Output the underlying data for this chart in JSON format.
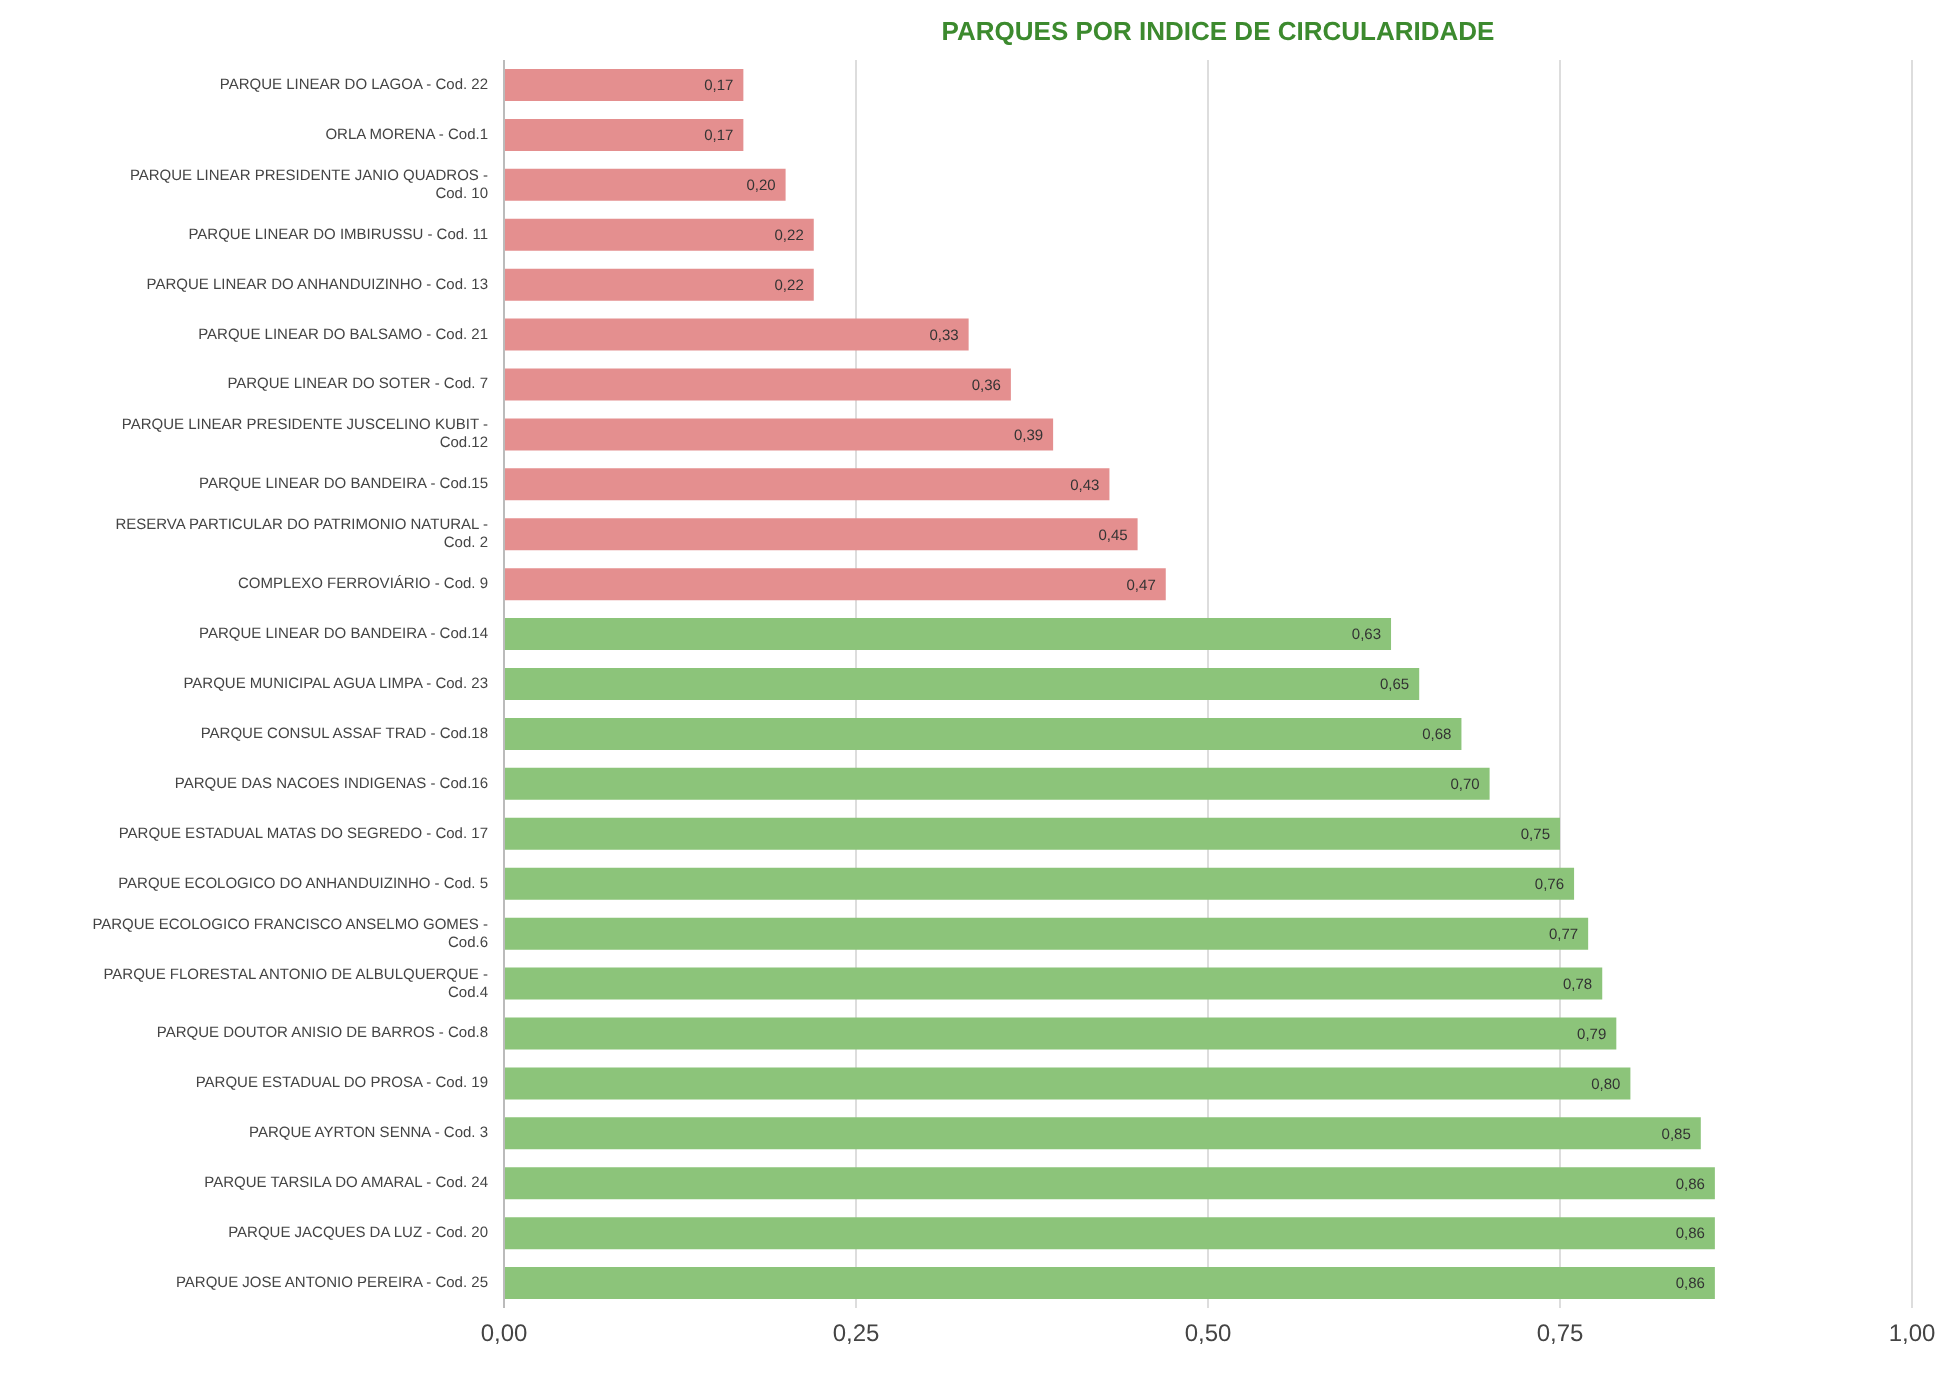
{
  "chart_data": {
    "type": "bar",
    "orientation": "horizontal",
    "title": "PARQUES POR INDICE DE CIRCULARIDADE",
    "categories": [
      "PARQUE LINEAR DO LAGOA - Cod. 22",
      "ORLA MORENA - Cod.1",
      "PARQUE LINEAR PRESIDENTE JANIO QUADROS - Cod. 10",
      "PARQUE LINEAR DO IMBIRUSSU - Cod. 11",
      "PARQUE LINEAR DO ANHANDUIZINHO - Cod. 13",
      "PARQUE LINEAR DO BALSAMO - Cod. 21",
      "PARQUE LINEAR DO SOTER - Cod. 7",
      "PARQUE LINEAR PRESIDENTE JUSCELINO KUBIT - Cod.12",
      "PARQUE LINEAR DO BANDEIRA - Cod.15",
      "RESERVA PARTICULAR DO PATRIMONIO NATURAL - Cod. 2",
      "COMPLEXO FERROVIÁRIO - Cod. 9",
      "PARQUE LINEAR DO BANDEIRA - Cod.14",
      "PARQUE MUNICIPAL AGUA LIMPA - Cod. 23",
      "PARQUE CONSUL ASSAF TRAD - Cod.18",
      "PARQUE DAS NACOES INDIGENAS - Cod.16",
      "PARQUE ESTADUAL MATAS DO SEGREDO - Cod. 17",
      "PARQUE ECOLOGICO DO ANHANDUIZINHO - Cod. 5",
      "PARQUE ECOLOGICO FRANCISCO ANSELMO GOMES - Cod.6",
      "PARQUE FLORESTAL ANTONIO DE ALBULQUERQUE - Cod.4",
      "PARQUE DOUTOR ANISIO DE BARROS - Cod.8",
      "PARQUE ESTADUAL DO PROSA - Cod. 19",
      "PARQUE AYRTON SENNA - Cod. 3",
      "PARQUE TARSILA DO AMARAL - Cod. 24",
      "PARQUE JACQUES DA LUZ - Cod. 20",
      "PARQUE JOSE ANTONIO PEREIRA - Cod. 25"
    ],
    "values": [
      0.17,
      0.17,
      0.2,
      0.22,
      0.22,
      0.33,
      0.36,
      0.39,
      0.43,
      0.45,
      0.47,
      0.63,
      0.65,
      0.68,
      0.7,
      0.75,
      0.76,
      0.77,
      0.78,
      0.79,
      0.8,
      0.85,
      0.86,
      0.86,
      0.86
    ],
    "value_labels": [
      "0,17",
      "0,17",
      "0,20",
      "0,22",
      "0,22",
      "0,33",
      "0,36",
      "0,39",
      "0,43",
      "0,45",
      "0,47",
      "0,63",
      "0,65",
      "0,68",
      "0,70",
      "0,75",
      "0,76",
      "0,77",
      "0,78",
      "0,79",
      "0,80",
      "0,85",
      "0,86",
      "0,86",
      "0,86"
    ],
    "colors": [
      "#e48f8f",
      "#e48f8f",
      "#e48f8f",
      "#e48f8f",
      "#e48f8f",
      "#e48f8f",
      "#e48f8f",
      "#e48f8f",
      "#e48f8f",
      "#e48f8f",
      "#e48f8f",
      "#8cc47a",
      "#8cc47a",
      "#8cc47a",
      "#8cc47a",
      "#8cc47a",
      "#8cc47a",
      "#8cc47a",
      "#8cc47a",
      "#8cc47a",
      "#8cc47a",
      "#8cc47a",
      "#8cc47a",
      "#8cc47a",
      "#8cc47a"
    ],
    "xlim": [
      0,
      1
    ],
    "xticks": [
      {
        "value": 0,
        "label": "0,00"
      },
      {
        "value": 0.25,
        "label": "0,25"
      },
      {
        "value": 0.5,
        "label": "0,50"
      },
      {
        "value": 0.75,
        "label": "0,75"
      },
      {
        "value": 1,
        "label": "1,00"
      }
    ],
    "grid": "x"
  }
}
